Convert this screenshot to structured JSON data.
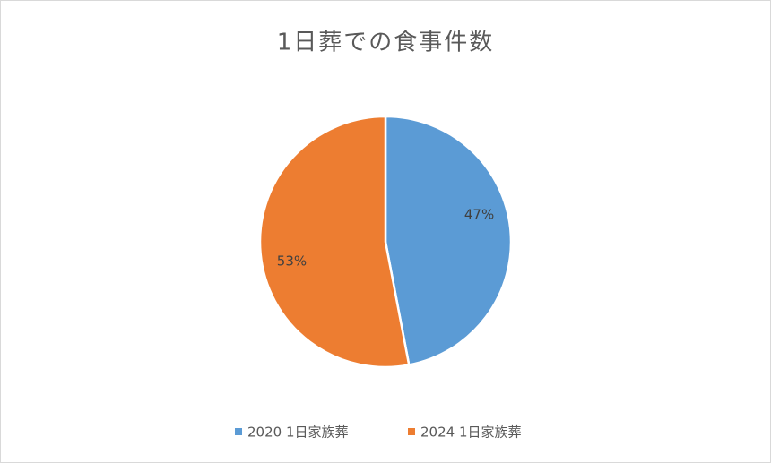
{
  "chart_data": {
    "type": "pie",
    "title": "1日葬での食事件数",
    "categories": [
      "2020 1日家族葬",
      "2024 1日家族葬"
    ],
    "values": [
      47,
      53
    ],
    "value_labels": [
      "47%",
      "53%"
    ],
    "colors": [
      "#5b9bd5",
      "#ed7d31"
    ],
    "legend": "bottom"
  }
}
